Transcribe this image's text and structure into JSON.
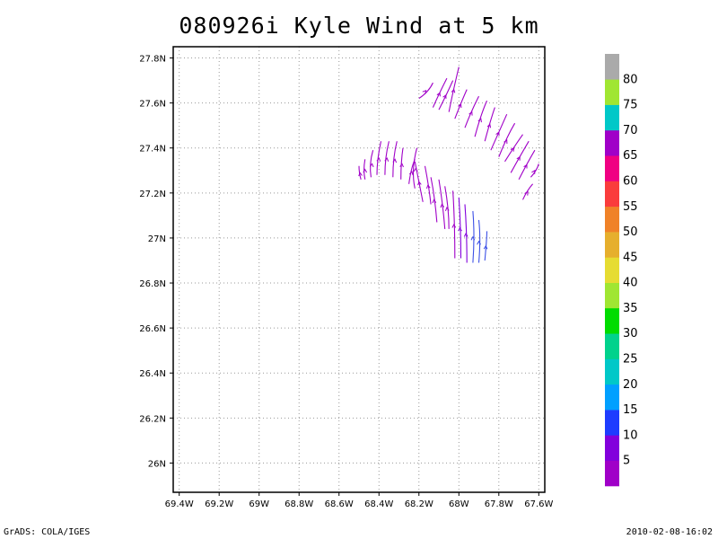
{
  "title": "080926i Kyle Wind at 5 km",
  "footer": {
    "left": "GrADS: COLA/IGES",
    "right": "2010-02-08-16:02"
  },
  "colors": {
    "gridline": "#999999",
    "frame": "#000000"
  },
  "chart_data": {
    "type": "vector-field",
    "xlim": [
      -69.43,
      -67.57
    ],
    "ylim": [
      25.87,
      27.85
    ],
    "x_ticks": [
      {
        "value": -69.4,
        "label": "69.4W"
      },
      {
        "value": -69.2,
        "label": "69.2W"
      },
      {
        "value": -69.0,
        "label": "69W"
      },
      {
        "value": -68.8,
        "label": "68.8W"
      },
      {
        "value": -68.6,
        "label": "68.6W"
      },
      {
        "value": -68.4,
        "label": "68.4W"
      },
      {
        "value": -68.2,
        "label": "68.2W"
      },
      {
        "value": -68.0,
        "label": "68W"
      },
      {
        "value": -67.8,
        "label": "67.8W"
      },
      {
        "value": -67.6,
        "label": "67.6W"
      }
    ],
    "y_ticks": [
      {
        "value": 26.0,
        "label": "26N"
      },
      {
        "value": 26.2,
        "label": "26.2N"
      },
      {
        "value": 26.4,
        "label": "26.4N"
      },
      {
        "value": 26.6,
        "label": "26.6N"
      },
      {
        "value": 26.8,
        "label": "26.8N"
      },
      {
        "value": 27.0,
        "label": "27N"
      },
      {
        "value": 27.2,
        "label": "27.2N"
      },
      {
        "value": 27.4,
        "label": "27.4N"
      },
      {
        "value": 27.6,
        "label": "27.6N"
      },
      {
        "value": 27.8,
        "label": "27.8N"
      }
    ],
    "grid": true,
    "colorbar": {
      "placement": "right",
      "segments": [
        {
          "color": "#a000c8"
        },
        {
          "color": "#8200dc"
        },
        {
          "color": "#1e3cff"
        },
        {
          "color": "#00a0ff"
        },
        {
          "color": "#00c8c8"
        },
        {
          "color": "#00d28c"
        },
        {
          "color": "#00dc00"
        },
        {
          "color": "#a0e632"
        },
        {
          "color": "#e6dc32"
        },
        {
          "color": "#e6af2d"
        },
        {
          "color": "#f08228"
        },
        {
          "color": "#fa3c3c"
        },
        {
          "color": "#f00082"
        },
        {
          "color": "#a000c8"
        },
        {
          "color": "#00c8c8"
        },
        {
          "color": "#a0e632"
        },
        {
          "color": "#aaaaaa"
        }
      ],
      "labels": [
        "5",
        "10",
        "15",
        "20",
        "25",
        "30",
        "35",
        "40",
        "45",
        "50",
        "55",
        "60",
        "65",
        "70",
        "75",
        "80"
      ]
    },
    "streamlines": [
      {
        "color": "#a000c8",
        "points": [
          [
            -68.49,
            27.26
          ],
          [
            -68.5,
            27.29
          ],
          [
            -68.5,
            27.32
          ]
        ]
      },
      {
        "color": "#a000c8",
        "points": [
          [
            -68.47,
            27.26
          ],
          [
            -68.48,
            27.3
          ],
          [
            -68.47,
            27.35
          ]
        ]
      },
      {
        "color": "#a000c8",
        "points": [
          [
            -68.44,
            27.27
          ],
          [
            -68.45,
            27.33
          ],
          [
            -68.43,
            27.39
          ]
        ]
      },
      {
        "color": "#a000c8",
        "points": [
          [
            -68.41,
            27.28
          ],
          [
            -68.41,
            27.35
          ],
          [
            -68.39,
            27.43
          ]
        ]
      },
      {
        "color": "#a000c8",
        "points": [
          [
            -68.37,
            27.28
          ],
          [
            -68.37,
            27.36
          ],
          [
            -68.35,
            27.43
          ]
        ]
      },
      {
        "color": "#a000c8",
        "points": [
          [
            -68.33,
            27.27
          ],
          [
            -68.33,
            27.36
          ],
          [
            -68.31,
            27.43
          ]
        ]
      },
      {
        "color": "#a000c8",
        "points": [
          [
            -68.29,
            27.26
          ],
          [
            -68.29,
            27.34
          ],
          [
            -68.28,
            27.4
          ]
        ]
      },
      {
        "color": "#a000c8",
        "points": [
          [
            -68.25,
            27.24
          ],
          [
            -68.24,
            27.31
          ],
          [
            -68.22,
            27.35
          ]
        ]
      },
      {
        "color": "#a000c8",
        "points": [
          [
            -68.22,
            27.22
          ],
          [
            -68.24,
            27.3
          ],
          [
            -68.21,
            27.4
          ]
        ]
      },
      {
        "color": "#a000c8",
        "points": [
          [
            -68.18,
            27.16
          ],
          [
            -68.2,
            27.25
          ],
          [
            -68.22,
            27.34
          ]
        ]
      },
      {
        "color": "#a000c8",
        "points": [
          [
            -68.14,
            27.15
          ],
          [
            -68.15,
            27.23
          ],
          [
            -68.17,
            27.32
          ]
        ]
      },
      {
        "color": "#a000c8",
        "points": [
          [
            -68.11,
            27.07
          ],
          [
            -68.12,
            27.18
          ],
          [
            -68.14,
            27.27
          ]
        ]
      },
      {
        "color": "#a000c8",
        "points": [
          [
            -68.07,
            27.04
          ],
          [
            -68.08,
            27.15
          ],
          [
            -68.1,
            27.26
          ]
        ]
      },
      {
        "color": "#a000c8",
        "points": [
          [
            -68.05,
            27.04
          ],
          [
            -68.05,
            27.13
          ],
          [
            -68.07,
            27.23
          ]
        ]
      },
      {
        "color": "#a000c8",
        "points": [
          [
            -68.02,
            26.91
          ],
          [
            -68.02,
            27.07
          ],
          [
            -68.03,
            27.21
          ]
        ]
      },
      {
        "color": "#8200dc",
        "points": [
          [
            -67.99,
            26.91
          ],
          [
            -67.99,
            27.05
          ],
          [
            -68.0,
            27.18
          ]
        ]
      },
      {
        "color": "#8200dc",
        "points": [
          [
            -67.96,
            26.89
          ],
          [
            -67.96,
            27.03
          ],
          [
            -67.97,
            27.15
          ]
        ]
      },
      {
        "color": "#3c50e6",
        "points": [
          [
            -67.93,
            26.89
          ],
          [
            -67.92,
            27.01
          ],
          [
            -67.93,
            27.12
          ]
        ]
      },
      {
        "color": "#3c50e6",
        "points": [
          [
            -67.9,
            26.89
          ],
          [
            -67.89,
            27.0
          ],
          [
            -67.9,
            27.08
          ]
        ]
      },
      {
        "color": "#3c50e6",
        "points": [
          [
            -67.87,
            26.9
          ],
          [
            -67.86,
            27.0
          ],
          [
            -67.86,
            27.03
          ]
        ]
      },
      {
        "color": "#a000c8",
        "points": [
          [
            -68.2,
            27.62
          ],
          [
            -68.15,
            27.65
          ],
          [
            -68.13,
            27.69
          ]
        ]
      },
      {
        "color": "#a000c8",
        "points": [
          [
            -68.13,
            27.58
          ],
          [
            -68.1,
            27.64
          ],
          [
            -68.06,
            27.71
          ]
        ]
      },
      {
        "color": "#a000c8",
        "points": [
          [
            -68.1,
            27.57
          ],
          [
            -68.06,
            27.64
          ],
          [
            -68.03,
            27.7
          ]
        ]
      },
      {
        "color": "#a000c8",
        "points": [
          [
            -68.05,
            27.56
          ],
          [
            -68.03,
            27.65
          ],
          [
            -68.0,
            27.76
          ]
        ]
      },
      {
        "color": "#a000c8",
        "points": [
          [
            -68.02,
            27.53
          ],
          [
            -67.99,
            27.6
          ],
          [
            -67.96,
            27.66
          ]
        ]
      },
      {
        "color": "#a000c8",
        "points": [
          [
            -67.97,
            27.49
          ],
          [
            -67.94,
            27.56
          ],
          [
            -67.9,
            27.63
          ]
        ]
      },
      {
        "color": "#a000c8",
        "points": [
          [
            -67.92,
            27.45
          ],
          [
            -67.89,
            27.55
          ],
          [
            -67.86,
            27.61
          ]
        ]
      },
      {
        "color": "#a000c8",
        "points": [
          [
            -67.87,
            27.43
          ],
          [
            -67.84,
            27.53
          ],
          [
            -67.82,
            27.58
          ]
        ]
      },
      {
        "color": "#a000c8",
        "points": [
          [
            -67.84,
            27.39
          ],
          [
            -67.8,
            27.47
          ],
          [
            -67.76,
            27.55
          ]
        ]
      },
      {
        "color": "#a000c8",
        "points": [
          [
            -67.8,
            27.36
          ],
          [
            -67.76,
            27.45
          ],
          [
            -67.72,
            27.51
          ]
        ]
      },
      {
        "color": "#a000c8",
        "points": [
          [
            -67.77,
            27.34
          ],
          [
            -67.72,
            27.41
          ],
          [
            -67.68,
            27.46
          ]
        ]
      },
      {
        "color": "#a000c8",
        "points": [
          [
            -67.74,
            27.29
          ],
          [
            -67.69,
            27.37
          ],
          [
            -67.65,
            27.43
          ]
        ]
      },
      {
        "color": "#a000c8",
        "points": [
          [
            -67.7,
            27.26
          ],
          [
            -67.66,
            27.33
          ],
          [
            -67.62,
            27.39
          ]
        ]
      },
      {
        "color": "#a000c8",
        "points": [
          [
            -67.68,
            27.17
          ],
          [
            -67.66,
            27.21
          ],
          [
            -67.63,
            27.24
          ]
        ]
      },
      {
        "color": "#a000c8",
        "points": [
          [
            -67.64,
            27.27
          ],
          [
            -67.61,
            27.3
          ],
          [
            -67.6,
            27.33
          ]
        ]
      }
    ]
  }
}
